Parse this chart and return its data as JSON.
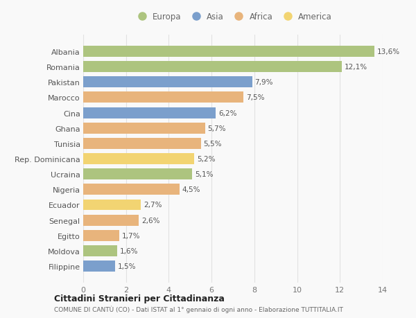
{
  "countries": [
    "Albania",
    "Romania",
    "Pakistan",
    "Marocco",
    "Cina",
    "Ghana",
    "Tunisia",
    "Rep. Dominicana",
    "Ucraina",
    "Nigeria",
    "Ecuador",
    "Senegal",
    "Egitto",
    "Moldova",
    "Filippine"
  ],
  "values": [
    13.6,
    12.1,
    7.9,
    7.5,
    6.2,
    5.7,
    5.5,
    5.2,
    5.1,
    4.5,
    2.7,
    2.6,
    1.7,
    1.6,
    1.5
  ],
  "labels": [
    "13,6%",
    "12,1%",
    "7,9%",
    "7,5%",
    "6,2%",
    "5,7%",
    "5,5%",
    "5,2%",
    "5,1%",
    "4,5%",
    "2,7%",
    "2,6%",
    "1,7%",
    "1,6%",
    "1,5%"
  ],
  "regions": [
    "Europa",
    "Europa",
    "Asia",
    "Africa",
    "Asia",
    "Africa",
    "Africa",
    "America",
    "Europa",
    "Africa",
    "America",
    "Africa",
    "Africa",
    "Europa",
    "Asia"
  ],
  "region_colors": {
    "Europa": "#adc47f",
    "Asia": "#7b9fcc",
    "Africa": "#e8b47c",
    "America": "#f2d472"
  },
  "legend_order": [
    "Europa",
    "Asia",
    "Africa",
    "America"
  ],
  "title": "Cittadini Stranieri per Cittadinanza",
  "subtitle": "COMUNE DI CANTÙ (CO) - Dati ISTAT al 1° gennaio di ogni anno - Elaborazione TUTTITALIA.IT",
  "xlim": [
    0,
    14
  ],
  "xticks": [
    0,
    2,
    4,
    6,
    8,
    10,
    12,
    14
  ],
  "bg_color": "#f9f9f9",
  "grid_color": "#e2e2e2"
}
